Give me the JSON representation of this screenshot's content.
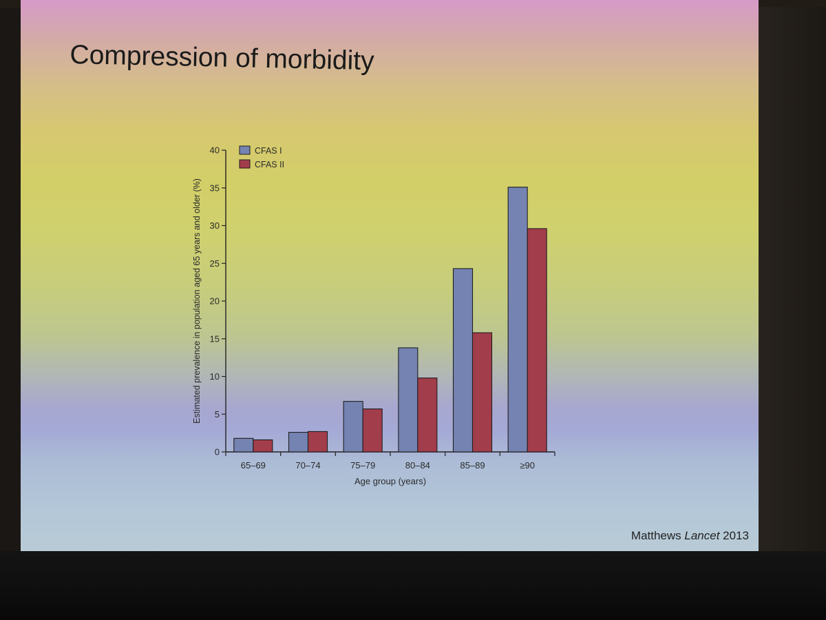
{
  "slide": {
    "title": "Compression of morbidity",
    "citation_author": "Matthews",
    "citation_journal": "Lancet",
    "citation_year": "2013"
  },
  "colors": {
    "cfas1": "#7583b2",
    "cfas2": "#a23d4b",
    "axis": "#222222"
  },
  "chart_data": {
    "type": "bar",
    "xlabel": "Age group (years)",
    "ylabel": "Estimated prevalence in population aged 65 years and older (%)",
    "ylim": [
      0,
      40
    ],
    "yticks": [
      0,
      5,
      10,
      15,
      20,
      25,
      30,
      35,
      40
    ],
    "categories": [
      "65–69",
      "70–74",
      "75–79",
      "80–84",
      "85–89",
      "≥90"
    ],
    "legend_position": "top-left",
    "grid": false,
    "series": [
      {
        "name": "CFAS I",
        "values": [
          1.8,
          2.6,
          6.7,
          13.8,
          24.3,
          35.1
        ]
      },
      {
        "name": "CFAS II",
        "values": [
          1.6,
          2.7,
          5.7,
          9.8,
          15.8,
          29.6
        ]
      }
    ]
  }
}
